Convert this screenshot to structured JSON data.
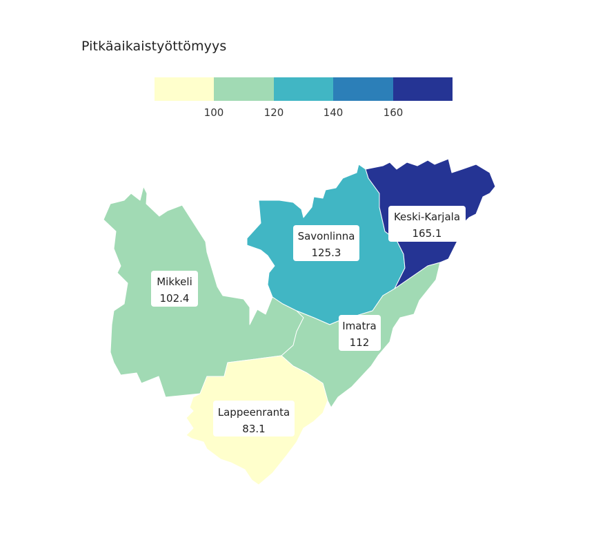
{
  "title": "Pitkäaikaistyöttömyys",
  "legend": {
    "colors": [
      "#ffffcc",
      "#a1dab4",
      "#41b6c4",
      "#2c7fb8",
      "#253494"
    ],
    "ticks": [
      "100",
      "120",
      "140",
      "160"
    ],
    "breaks": [
      100,
      120,
      140,
      160
    ]
  },
  "regions": [
    {
      "name": "Mikkeli",
      "value": "102.4",
      "color": "#a1dab4"
    },
    {
      "name": "Savonlinna",
      "value": "125.3",
      "color": "#41b6c4"
    },
    {
      "name": "Keski-Karjala",
      "value": "165.1",
      "color": "#253494"
    },
    {
      "name": "Imatra",
      "value": "112",
      "color": "#a1dab4"
    },
    {
      "name": "Lappeenranta",
      "value": "83.1",
      "color": "#ffffcc"
    }
  ]
}
